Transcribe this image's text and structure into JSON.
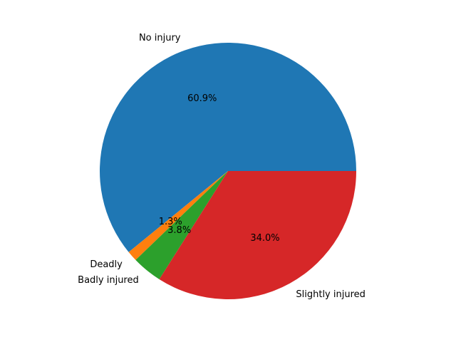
{
  "chart_data": {
    "type": "pie",
    "title": "",
    "start_angle_deg": 0,
    "direction": "counterclockwise",
    "slices": [
      {
        "label": "No injury",
        "value": 60.9,
        "pct_label": "60.9%",
        "color": "#1f77b4"
      },
      {
        "label": "Deadly",
        "value": 1.3,
        "pct_label": "1.3%",
        "color": "#ff7f0e"
      },
      {
        "label": "Badly injured",
        "value": 3.8,
        "pct_label": "3.8%",
        "color": "#2ca02c"
      },
      {
        "label": "Slightly injured",
        "value": 34.0,
        "pct_label": "34.0%",
        "color": "#d62728"
      }
    ]
  }
}
